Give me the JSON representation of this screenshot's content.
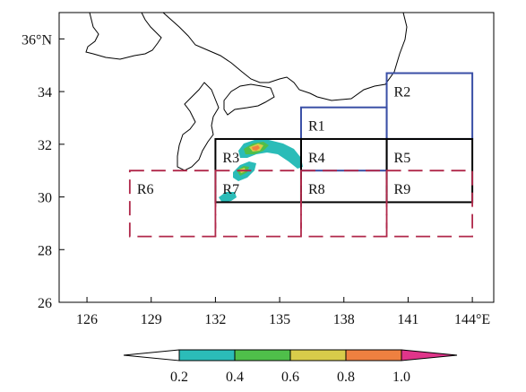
{
  "map": {
    "lon_range": [
      124.7,
      145.0
    ],
    "lat_range": [
      26,
      37
    ],
    "lon_ticks": [
      "126",
      "129",
      "132",
      "135",
      "138",
      "141",
      "144°E"
    ],
    "lat_ticks": [
      "26",
      "28",
      "30",
      "32",
      "34",
      "36°N"
    ],
    "lon_tick_values": [
      126,
      129,
      132,
      135,
      138,
      141,
      144
    ],
    "lat_tick_values": [
      26,
      28,
      30,
      32,
      34,
      36
    ]
  },
  "regions": [
    {
      "label": "R1",
      "lon": [
        136,
        140
      ],
      "lat": [
        31,
        33.4
      ],
      "color": "#3a4fa6",
      "style": "solid"
    },
    {
      "label": "R2",
      "lon": [
        140,
        144
      ],
      "lat": [
        32.2,
        34.7
      ],
      "color": "#3a4fa6",
      "style": "solid"
    },
    {
      "label": "R3",
      "lon": [
        132,
        136
      ],
      "lat": [
        29.8,
        32.2
      ],
      "color": "#000000",
      "style": "solid"
    },
    {
      "label": "R4",
      "lon": [
        136,
        140
      ],
      "lat": [
        29.8,
        32.2
      ],
      "color": "#000000",
      "style": "solid"
    },
    {
      "label": "R5",
      "lon": [
        140,
        144
      ],
      "lat": [
        29.8,
        32.2
      ],
      "color": "#000000",
      "style": "solid"
    },
    {
      "label": "R6",
      "lon": [
        128,
        132
      ],
      "lat": [
        28.5,
        31
      ],
      "color": "#b0284a",
      "style": "dashed"
    },
    {
      "label": "R7",
      "lon": [
        132,
        136
      ],
      "lat": [
        28.5,
        31
      ],
      "color": "#b0284a",
      "style": "dashed"
    },
    {
      "label": "R8",
      "lon": [
        136,
        140
      ],
      "lat": [
        28.5,
        31
      ],
      "color": "#b0284a",
      "style": "dashed"
    },
    {
      "label": "R9",
      "lon": [
        140,
        144
      ],
      "lat": [
        28.5,
        31
      ],
      "color": "#b0284a",
      "style": "dashed"
    }
  ],
  "colorbar": {
    "labels": [
      "0.2",
      "0.4",
      "0.6",
      "0.8",
      "1.0"
    ],
    "colors": [
      "#ffffff",
      "#2bbcb8",
      "#4fbf4a",
      "#d8cc4a",
      "#ee8040",
      "#e0358a"
    ]
  }
}
